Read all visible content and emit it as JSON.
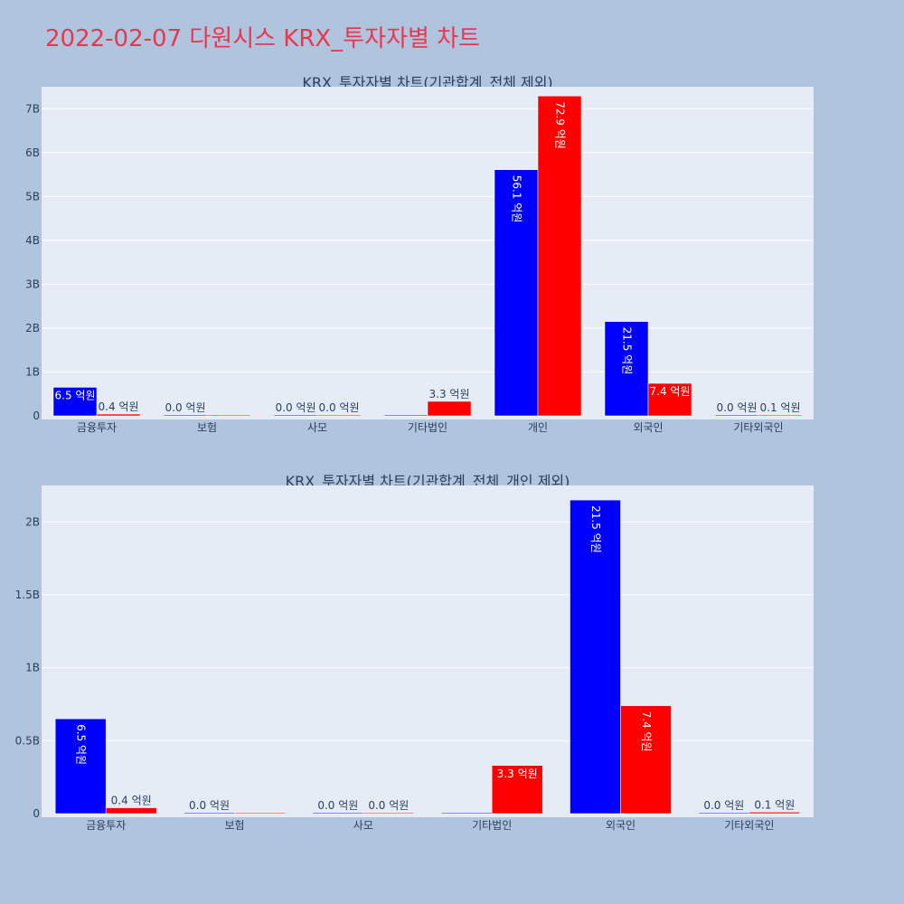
{
  "page_title": "2022-02-07 다원시스 KRX_투자자별 차트",
  "colors": {
    "page_bg": "#b0c4de",
    "plot_bg": "#e5ecf6",
    "title": "#e8384f",
    "text": "#2a3f5f",
    "buy": "#0000ff",
    "sell": "#ff0000",
    "grid": "#ffffff"
  },
  "chart_data": [
    {
      "type": "bar",
      "title": "KRX_투자자별 차트(기관합계_전체 제외)",
      "categories": [
        "금융투자",
        "보험",
        "사모",
        "기타법인",
        "개인",
        "외국인",
        "기타외국인"
      ],
      "yticks": [
        0,
        1000000000,
        2000000000,
        3000000000,
        4000000000,
        5000000000,
        6000000000,
        7000000000
      ],
      "ytick_labels": [
        "0",
        "1B",
        "2B",
        "3B",
        "4B",
        "5B",
        "6B",
        "7B"
      ],
      "ylim": [
        0,
        7500000000
      ],
      "grid": true,
      "series": [
        {
          "color": "#0000ff",
          "values": [
            650000000,
            0,
            0,
            0,
            5610000000,
            2150000000,
            0
          ],
          "labels": [
            "6.5 억원",
            "0.0 억원",
            "0.0 억원",
            "",
            "56.1 억원",
            "21.5 억원",
            "0.0 억원"
          ]
        },
        {
          "color": "#ff0000",
          "values": [
            40000000,
            0,
            0,
            330000000,
            7290000000,
            740000000,
            10000000
          ],
          "labels": [
            "0.4 억원",
            "",
            "0.0 억원",
            "3.3 억원",
            "72.9 억원",
            "7.4 억원",
            "0.1 억원"
          ]
        }
      ]
    },
    {
      "type": "bar",
      "title": "KRX_투자자별 차트(기관합계_전체_개인 제외)",
      "categories": [
        "금융투자",
        "보험",
        "사모",
        "기타법인",
        "외국인",
        "기타외국인"
      ],
      "yticks": [
        0,
        500000000,
        1000000000,
        1500000000,
        2000000000
      ],
      "ytick_labels": [
        "0",
        "0.5B",
        "1B",
        "1.5B",
        "2B"
      ],
      "ylim": [
        0,
        2250000000
      ],
      "grid": true,
      "series": [
        {
          "color": "#0000ff",
          "values": [
            650000000,
            0,
            0,
            0,
            2150000000,
            0
          ],
          "labels": [
            "6.5 억원",
            "0.0 억원",
            "0.0 억원",
            "",
            "21.5 억원",
            "0.0 억원"
          ]
        },
        {
          "color": "#ff0000",
          "values": [
            40000000,
            0,
            0,
            330000000,
            740000000,
            10000000
          ],
          "labels": [
            "0.4 억원",
            "",
            "0.0 억원",
            "3.3 억원",
            "7.4 억원",
            "0.1 억원"
          ]
        }
      ]
    }
  ]
}
